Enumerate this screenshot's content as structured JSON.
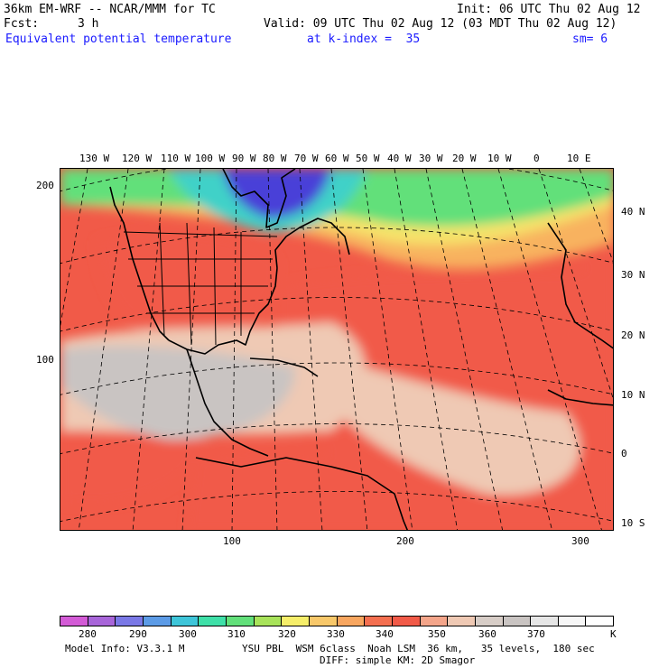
{
  "header": {
    "model_title": "36km EM-WRF -- NCAR/MMM for TC",
    "init": "Init: 06 UTC Thu 02 Aug 12",
    "fcst_label": "Fcst:",
    "fcst_value": "3 h",
    "valid": "Valid: 09 UTC Thu 02 Aug 12 (03 MDT Thu 02 Aug 12)",
    "field_name": "Equivalent potential temperature",
    "level": "at k-index =  35",
    "smoothing": "sm= 6"
  },
  "map": {
    "top_lon_labels": [
      "130 W",
      "120 W",
      "110 W",
      "100 W",
      "90 W",
      "80 W",
      "70 W",
      "60 W",
      "50 W",
      "40 W",
      "30 W",
      "20 W",
      "10 W",
      "0",
      "10 E"
    ],
    "right_lat_labels": [
      "40 N",
      "30 N",
      "20 N",
      "10 N",
      "0",
      "10 S"
    ],
    "left_grid_labels": [
      "200",
      "100"
    ],
    "bottom_grid_labels": [
      "100",
      "200",
      "300"
    ],
    "colors": {
      "cold": "#4a3fd8",
      "cyan": "#3fd1c8",
      "green": "#62e07a",
      "lime": "#a8e35a",
      "yellow": "#f6e36a",
      "orange": "#f8b25f",
      "red": "#f15a48",
      "salmon": "#f4a58a",
      "pink": "#efc9b4",
      "gray": "#c9c4c2"
    }
  },
  "colorbar": {
    "colors": [
      "#d35bd6",
      "#a865d9",
      "#7a78e6",
      "#5c9be6",
      "#3ec5d9",
      "#3fe0a8",
      "#62e07a",
      "#a8e35a",
      "#f6ee6a",
      "#f8c86a",
      "#f8a65f",
      "#f46f50",
      "#f15a48",
      "#f4a58a",
      "#efc9b4",
      "#d7cdc7",
      "#c9c4c2",
      "#e6e6e6",
      "#f7f7f7",
      "#ffffff"
    ],
    "tick_labels": [
      "280",
      "290",
      "300",
      "310",
      "320",
      "330",
      "340",
      "350",
      "360",
      "370"
    ],
    "unit": "K"
  },
  "footer": {
    "model_info": "Model Info: V3.3.1 M",
    "physics_line1": "YSU PBL  WSM 6class  Noah LSM  36 km,   35 levels,  180 sec",
    "physics_line2": "DIFF: simple KM: 2D Smagor"
  }
}
